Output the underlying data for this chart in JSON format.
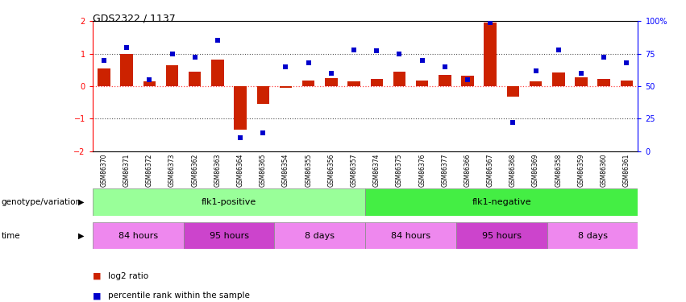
{
  "title": "GDS2322 / 1137",
  "samples": [
    "GSM86370",
    "GSM86371",
    "GSM86372",
    "GSM86373",
    "GSM86362",
    "GSM86363",
    "GSM86364",
    "GSM86365",
    "GSM86354",
    "GSM86355",
    "GSM86356",
    "GSM86357",
    "GSM86374",
    "GSM86375",
    "GSM86376",
    "GSM86377",
    "GSM86366",
    "GSM86367",
    "GSM86368",
    "GSM86369",
    "GSM86358",
    "GSM86359",
    "GSM86360",
    "GSM86361"
  ],
  "log2ratio": [
    0.55,
    1.0,
    0.15,
    0.65,
    0.45,
    0.82,
    -1.35,
    -0.55,
    -0.05,
    0.18,
    0.25,
    0.15,
    0.22,
    0.45,
    0.18,
    0.35,
    0.32,
    1.95,
    -0.32,
    0.15,
    0.42,
    0.28,
    0.22,
    0.18
  ],
  "percentile": [
    70,
    80,
    55,
    75,
    72,
    85,
    10,
    14,
    65,
    68,
    60,
    78,
    77,
    75,
    70,
    65,
    55,
    99,
    22,
    62,
    78,
    60,
    72,
    68
  ],
  "genotype_groups": [
    {
      "label": "flk1-positive",
      "start": 0,
      "end": 12,
      "color": "#99ff99"
    },
    {
      "label": "flk1-negative",
      "start": 12,
      "end": 24,
      "color": "#44ee44"
    }
  ],
  "time_groups": [
    {
      "label": "84 hours",
      "start": 0,
      "end": 4,
      "color": "#ee88ee"
    },
    {
      "label": "95 hours",
      "start": 4,
      "end": 8,
      "color": "#cc44cc"
    },
    {
      "label": "8 days",
      "start": 8,
      "end": 12,
      "color": "#ee88ee"
    },
    {
      "label": "84 hours",
      "start": 12,
      "end": 16,
      "color": "#ee88ee"
    },
    {
      "label": "95 hours",
      "start": 16,
      "end": 20,
      "color": "#cc44cc"
    },
    {
      "label": "8 days",
      "start": 20,
      "end": 24,
      "color": "#ee88ee"
    }
  ],
  "ylim": [
    -2,
    2
  ],
  "y2lim": [
    0,
    100
  ],
  "bar_color": "#cc2200",
  "dot_color": "#0000cc",
  "background_color": "#ffffff",
  "genotype_label": "genotype/variation",
  "time_label": "time",
  "legend_items": [
    {
      "label": "log2 ratio",
      "color": "#cc2200"
    },
    {
      "label": "percentile rank within the sample",
      "color": "#0000cc"
    }
  ]
}
